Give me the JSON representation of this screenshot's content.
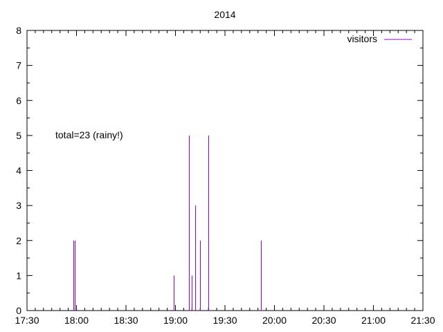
{
  "chart_data": {
    "type": "bar",
    "title": "2014",
    "xlabel": "",
    "ylabel": "",
    "x_axis_type": "time",
    "xlim": [
      "17:30",
      "21:30"
    ],
    "ylim": [
      0,
      8
    ],
    "x_ticks": [
      "17:30",
      "18:00",
      "18:30",
      "19:00",
      "19:30",
      "20:00",
      "20:30",
      "21:00",
      "21:30"
    ],
    "y_ticks": [
      "0",
      "1",
      "2",
      "3",
      "4",
      "5",
      "6",
      "7",
      "8"
    ],
    "legend": {
      "position": "top-right",
      "entries": [
        "visitors"
      ]
    },
    "annotation": "total=23 (rainy!)",
    "grid": false,
    "series": [
      {
        "name": "visitors",
        "color": "#9400d3",
        "style": "impulses",
        "points": [
          {
            "x": "17:58",
            "y": 2
          },
          {
            "x": "17:59",
            "y": 2
          },
          {
            "x": "18:59",
            "y": 1
          },
          {
            "x": "19:08",
            "y": 5
          },
          {
            "x": "19:10",
            "y": 1
          },
          {
            "x": "19:12",
            "y": 3
          },
          {
            "x": "19:15",
            "y": 2
          },
          {
            "x": "19:20",
            "y": 5
          },
          {
            "x": "19:52",
            "y": 2
          }
        ]
      }
    ]
  }
}
